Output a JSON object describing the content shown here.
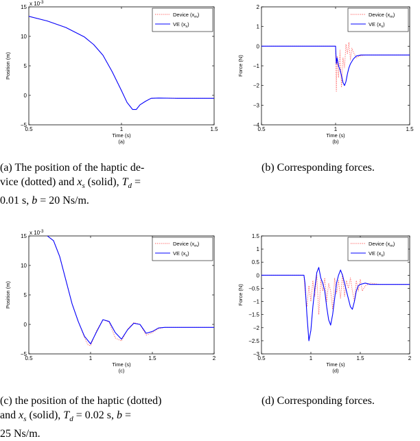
{
  "colors": {
    "device": "#ff4d4d",
    "ve": "#0000ff",
    "axis": "#000000"
  },
  "captions": {
    "a": {
      "line1": "(a) The position of the haptic de-",
      "line2_pre": "vice (dotted) and ",
      "line2_xs": "x",
      "line2_s": "s",
      "line2_mid": " (solid), ",
      "line2_T": "T",
      "line2_d": "d",
      "line2_end": " =",
      "line3": "0.01 s, ",
      "line3_b": "b",
      "line3_end": " = 20 Ns/m."
    },
    "b": {
      "text": "(b) Corresponding forces."
    },
    "c": {
      "line1": "(c) the position of the haptic (dotted)",
      "line2_pre": "and ",
      "line2_xs": "x",
      "line2_s": "s",
      "line2_mid": " (solid), ",
      "line2_T": "T",
      "line2_d": "d",
      "line2_end": " = 0.02 s, ",
      "line2_b": "b",
      "line2_eq": " =",
      "line3": "25 Ns/m."
    },
    "d": {
      "text": "(d) Corresponding forces."
    }
  },
  "chart_data": [
    {
      "id": "a",
      "type": "line",
      "sublabel": "(a)",
      "xlabel": "Time (s)",
      "ylabel": "Position (m)",
      "exponent_label": "x 10",
      "exponent_power": "-3",
      "xlim": [
        0.5,
        1.5
      ],
      "ylim": [
        -5,
        15
      ],
      "xticks": [
        0.5,
        1,
        1.5
      ],
      "xtick_labels": [
        "0.5",
        "1",
        "1.5"
      ],
      "yticks": [
        -5,
        0,
        5,
        10,
        15
      ],
      "ytick_labels": [
        "−5",
        "0",
        "5",
        "10",
        "15"
      ],
      "legend": {
        "position": "top-right",
        "entries": [
          {
            "label": "Device (x",
            "sub": "m",
            "close": ")",
            "style": "dotted",
            "color": "#ff4d4d"
          },
          {
            "label": "VE (x",
            "sub": "s",
            "close": ")",
            "style": "solid",
            "color": "#0000ff"
          }
        ]
      },
      "series": [
        {
          "name": "Device (xm)",
          "style": "dotted",
          "color": "#ff4d4d",
          "x": [
            0.5,
            0.6,
            0.7,
            0.8,
            0.85,
            0.9,
            0.95,
            1.0,
            1.03,
            1.06,
            1.08,
            1.1,
            1.13,
            1.16,
            1.2,
            1.3,
            1.5
          ],
          "y": [
            13.4,
            12.6,
            11.5,
            9.9,
            8.6,
            6.8,
            4.0,
            0.8,
            -1.2,
            -2.4,
            -2.4,
            -1.6,
            -1.0,
            -0.5,
            -0.45,
            -0.5,
            -0.5
          ]
        },
        {
          "name": "VE (xs)",
          "style": "solid",
          "color": "#0000ff",
          "x": [
            0.5,
            0.6,
            0.7,
            0.8,
            0.85,
            0.9,
            0.95,
            1.0,
            1.03,
            1.06,
            1.08,
            1.1,
            1.13,
            1.16,
            1.2,
            1.3,
            1.5
          ],
          "y": [
            13.4,
            12.6,
            11.5,
            9.9,
            8.6,
            6.8,
            4.0,
            0.8,
            -1.2,
            -2.4,
            -2.4,
            -1.6,
            -1.0,
            -0.5,
            -0.45,
            -0.5,
            -0.5
          ]
        }
      ]
    },
    {
      "id": "b",
      "type": "line",
      "sublabel": "(b)",
      "xlabel": "Time (s)",
      "ylabel": "Force (N)",
      "xlim": [
        0.5,
        1.5
      ],
      "ylim": [
        -4,
        2
      ],
      "xticks": [
        0.5,
        1,
        1.5
      ],
      "xtick_labels": [
        "0.5",
        "1",
        "1.5"
      ],
      "yticks": [
        -4,
        -3,
        -2,
        -1,
        0,
        1,
        2
      ],
      "ytick_labels": [
        "−4",
        "−3",
        "−2",
        "−1",
        "0",
        "1",
        "2"
      ],
      "legend": {
        "position": "top-right",
        "entries": [
          {
            "label": "Device (x",
            "sub": "m",
            "close": ")",
            "style": "dotted",
            "color": "#ff4d4d"
          },
          {
            "label": "VE (x",
            "sub": "s",
            "close": ")",
            "style": "solid",
            "color": "#0000ff"
          }
        ]
      },
      "series": [
        {
          "name": "Device (xm)",
          "style": "dotted",
          "color": "#ff4d4d",
          "x": [
            0.5,
            1.0,
            1.005,
            1.01,
            1.02,
            1.03,
            1.04,
            1.05,
            1.06,
            1.07,
            1.08,
            1.09,
            1.1,
            1.11,
            1.12,
            1.14,
            1.16,
            1.2,
            1.5
          ],
          "y": [
            0,
            0,
            -2.3,
            -0.5,
            -1.6,
            -0.2,
            -2.1,
            -0.6,
            -1.1,
            0.1,
            -0.4,
            0.2,
            -0.7,
            -0.1,
            -0.3,
            -0.6,
            -0.5,
            -0.45,
            -0.45
          ]
        },
        {
          "name": "VE (xs)",
          "style": "solid",
          "color": "#0000ff",
          "x": [
            0.5,
            1.0,
            1.005,
            1.01,
            1.02,
            1.03,
            1.04,
            1.05,
            1.06,
            1.07,
            1.08,
            1.09,
            1.1,
            1.12,
            1.14,
            1.17,
            1.2,
            1.3,
            1.5
          ],
          "y": [
            0,
            0,
            -0.9,
            -0.6,
            -1.0,
            -1.2,
            -1.5,
            -1.85,
            -2.0,
            -1.8,
            -1.4,
            -1.1,
            -0.9,
            -0.65,
            -0.5,
            -0.45,
            -0.45,
            -0.45,
            -0.45
          ]
        }
      ]
    },
    {
      "id": "c",
      "type": "line",
      "sublabel": "(c)",
      "xlabel": "Time (s)",
      "ylabel": "Position (m)",
      "exponent_label": "x 10",
      "exponent_power": "-3",
      "xlim": [
        0.5,
        2
      ],
      "ylim": [
        -5,
        15
      ],
      "xticks": [
        0.5,
        1,
        1.5,
        2
      ],
      "xtick_labels": [
        "0.5",
        "1",
        "1.5",
        "2"
      ],
      "yticks": [
        -5,
        0,
        5,
        10,
        15
      ],
      "ytick_labels": [
        "−5",
        "0",
        "5",
        "10",
        "15"
      ],
      "legend": {
        "position": "top-right",
        "entries": [
          {
            "label": "Device (x",
            "sub": "m",
            "close": ")",
            "style": "dotted",
            "color": "#ff4d4d"
          },
          {
            "label": "VE (x",
            "sub": "s",
            "close": ")",
            "style": "solid",
            "color": "#0000ff"
          }
        ]
      },
      "series": [
        {
          "name": "Device (xm)",
          "style": "dotted",
          "color": "#ff4d4d",
          "x": [
            0.65,
            0.7,
            0.75,
            0.8,
            0.85,
            0.9,
            0.95,
            0.98,
            1.0,
            1.05,
            1.1,
            1.15,
            1.2,
            1.25,
            1.3,
            1.35,
            1.4,
            1.45,
            1.5,
            1.55,
            1.6,
            1.7,
            2.0
          ],
          "y": [
            15,
            14.2,
            11.5,
            7.5,
            3.5,
            0.5,
            -2.2,
            -3.5,
            -3.6,
            -1.0,
            0.8,
            0.4,
            -2.3,
            -2.8,
            -0.8,
            0.3,
            0.0,
            -1.8,
            -1.4,
            -0.7,
            -0.5,
            -0.5,
            -0.5
          ]
        },
        {
          "name": "VE (xs)",
          "style": "solid",
          "color": "#0000ff",
          "x": [
            0.65,
            0.7,
            0.75,
            0.8,
            0.85,
            0.9,
            0.95,
            1.0,
            1.05,
            1.1,
            1.15,
            1.2,
            1.25,
            1.3,
            1.35,
            1.4,
            1.45,
            1.5,
            1.55,
            1.6,
            1.7,
            2.0
          ],
          "y": [
            15,
            14.2,
            11.5,
            7.5,
            3.5,
            0.5,
            -2.0,
            -3.3,
            -1.2,
            0.8,
            0.5,
            -1.4,
            -2.5,
            -0.9,
            0.2,
            0.0,
            -1.5,
            -1.2,
            -0.6,
            -0.5,
            -0.5,
            -0.5
          ]
        }
      ]
    },
    {
      "id": "d",
      "type": "line",
      "sublabel": "(d)",
      "xlabel": "Time (s)",
      "ylabel": "Force (N)",
      "xlim": [
        0.5,
        2
      ],
      "ylim": [
        -3,
        1.5
      ],
      "xticks": [
        0.5,
        1,
        1.5,
        2
      ],
      "xtick_labels": [
        "0.5",
        "1",
        "1.5",
        "2"
      ],
      "yticks": [
        -3,
        -2.5,
        -2,
        -1.5,
        -1,
        -0.5,
        0,
        0.5,
        1,
        1.5
      ],
      "ytick_labels": [
        "−3",
        "−2.5",
        "−2",
        "−1.5",
        "−1",
        "−0.5",
        "0",
        "0.5",
        "1",
        "1.5"
      ],
      "legend": {
        "position": "top-right",
        "entries": [
          {
            "label": "Device (x",
            "sub": "m",
            "close": ")",
            "style": "dotted",
            "color": "#ff4d4d"
          },
          {
            "label": "VE (x",
            "sub": "s",
            "close": ")",
            "style": "solid",
            "color": "#0000ff"
          }
        ]
      },
      "series": [
        {
          "name": "Device (xm)",
          "style": "dotted",
          "color": "#ff4d4d",
          "x": [
            0.5,
            0.93,
            0.94,
            0.96,
            0.98,
            1.0,
            1.02,
            1.04,
            1.06,
            1.08,
            1.1,
            1.12,
            1.14,
            1.16,
            1.18,
            1.2,
            1.22,
            1.24,
            1.26,
            1.28,
            1.3,
            1.32,
            1.34,
            1.36,
            1.38,
            1.4,
            1.42,
            1.44,
            1.46,
            1.48,
            1.5,
            1.52,
            1.55,
            1.6,
            1.7,
            2.0
          ],
          "y": [
            0,
            0,
            -0.6,
            -1.2,
            -0.4,
            -1.0,
            -0.2,
            -0.8,
            0.0,
            -1.5,
            -0.2,
            -0.6,
            -0.1,
            -1.0,
            -0.3,
            -0.6,
            -1.3,
            -0.1,
            -0.7,
            -0.2,
            -0.9,
            0.05,
            -0.8,
            -0.2,
            -0.5,
            -0.1,
            -0.6,
            -1.0,
            -0.2,
            -0.6,
            -0.15,
            -0.6,
            -0.4,
            -0.3,
            -0.35,
            -0.35
          ]
        },
        {
          "name": "VE (xs)",
          "style": "solid",
          "color": "#0000ff",
          "x": [
            0.5,
            0.93,
            0.94,
            0.96,
            0.98,
            1.0,
            1.02,
            1.04,
            1.06,
            1.08,
            1.1,
            1.12,
            1.14,
            1.16,
            1.18,
            1.2,
            1.22,
            1.24,
            1.26,
            1.28,
            1.3,
            1.32,
            1.34,
            1.36,
            1.38,
            1.4,
            1.42,
            1.44,
            1.46,
            1.48,
            1.5,
            1.55,
            1.6,
            1.7,
            2.0
          ],
          "y": [
            0,
            0,
            -0.3,
            -1.5,
            -2.5,
            -2.1,
            -1.2,
            -0.5,
            0.1,
            0.3,
            -0.1,
            -0.3,
            -0.6,
            -1.2,
            -1.7,
            -1.9,
            -1.5,
            -0.9,
            -0.3,
            0.0,
            0.2,
            0.0,
            -0.3,
            -0.6,
            -0.9,
            -1.2,
            -1.3,
            -1.0,
            -0.6,
            -0.4,
            -0.35,
            -0.3,
            -0.35,
            -0.35,
            -0.35
          ]
        }
      ]
    }
  ]
}
